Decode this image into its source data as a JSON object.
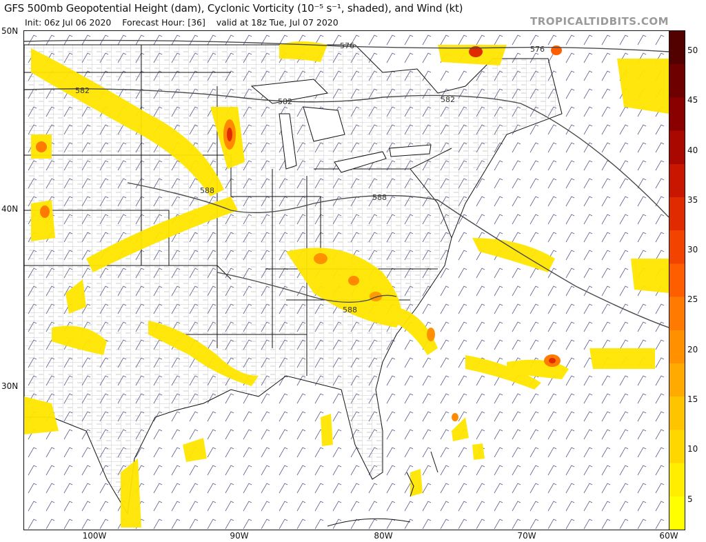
{
  "title": "GFS 500mb Geopotential Height (dam), Cyclonic Vorticity (10⁻⁵ s⁻¹, shaded), and Wind (kt)",
  "init": "Init: 06z Jul 06 2020",
  "forecast_hour": "Forecast Hour: [36]",
  "valid": "valid at 18z Tue, Jul 07 2020",
  "brand": "TROPICALTIDBITS.COM",
  "lat_labels": [
    "50N",
    "40N",
    "30N"
  ],
  "lon_labels": [
    "100W",
    "90W",
    "80W",
    "70W",
    "60W"
  ],
  "contours": [
    "576",
    "576",
    "582",
    "582",
    "582",
    "588",
    "588",
    "588"
  ],
  "colorbar": {
    "ticks": [
      "50",
      "45",
      "40",
      "35",
      "30",
      "25",
      "20",
      "15",
      "10",
      "5"
    ],
    "colors": [
      "#ffff00",
      "#ffee00",
      "#ffd700",
      "#ffc400",
      "#ffaa00",
      "#ff9100",
      "#ff7a00",
      "#ff5e00",
      "#f24300",
      "#e02b00",
      "#c81600",
      "#a80800",
      "#8a0000",
      "#6e0000",
      "#520000"
    ]
  }
}
